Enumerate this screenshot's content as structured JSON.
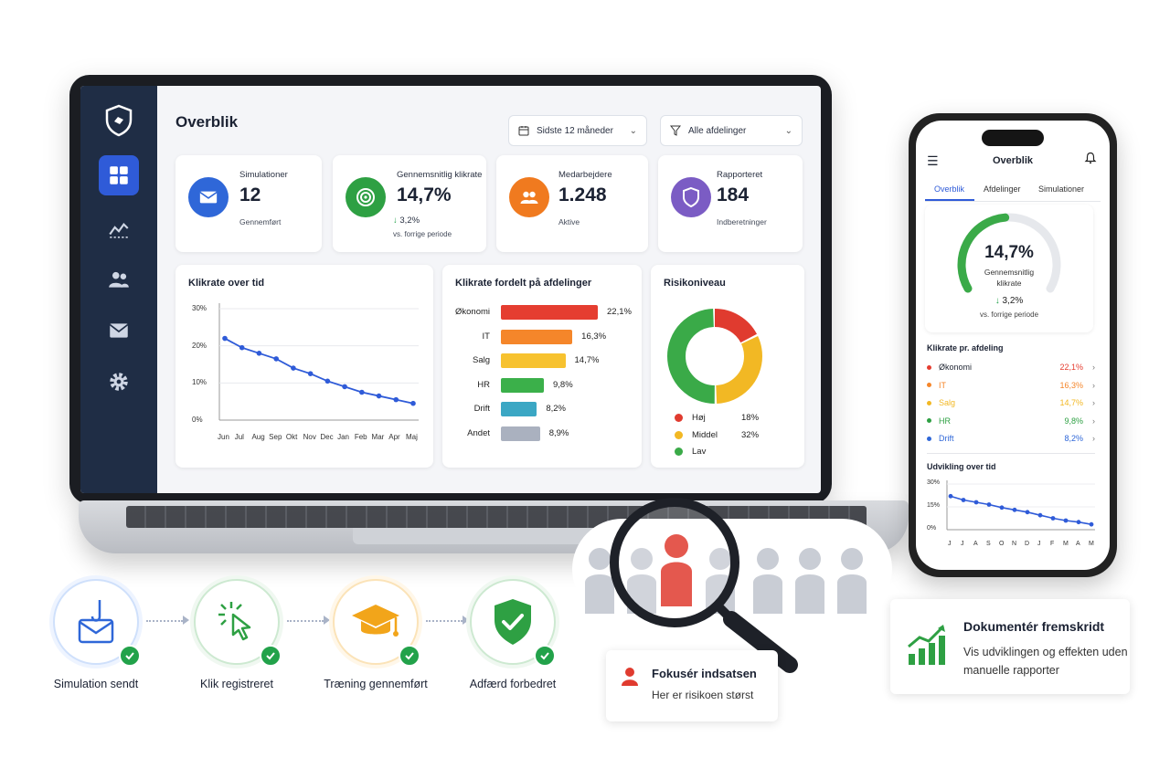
{
  "dashboard": {
    "title": "Overblik",
    "filter_period": "Sidste 12 måneder",
    "filter_dept": "Alle afdelinger",
    "kpis": [
      {
        "label": "Simulationer",
        "value": "12",
        "sub": "Gennemført",
        "color": "#2f67d8",
        "icon": "mail-icon"
      },
      {
        "label": "Gennemsnitlig klikrate",
        "value": "14,7%",
        "delta": "3,2%",
        "sub": "vs. forrige periode",
        "color": "#2ea043",
        "icon": "target-icon"
      },
      {
        "label": "Medarbejdere",
        "value": "1.248",
        "sub": "Aktive",
        "color": "#f07a1f",
        "icon": "users-icon"
      },
      {
        "label": "Rapporteret",
        "value": "184",
        "sub": "Indberetninger",
        "color": "#7b5cc4",
        "icon": "shield-icon"
      }
    ],
    "line_panel_title": "Klikrate over tid",
    "bar_panel_title": "Klikrate fordelt på afdelinger",
    "risk_panel_title": "Risikoniveau",
    "risk_legend": [
      {
        "label": "Høj",
        "value": "18%",
        "color": "#e03b2f"
      },
      {
        "label": "Middel",
        "value": "32%",
        "color": "#f2b824"
      },
      {
        "label": "Lav",
        "value": "",
        "color": "#3aaa48"
      }
    ],
    "sidebar_icons": [
      "dashboard-icon",
      "analytics-icon",
      "users-icon",
      "mail-icon",
      "gear-icon"
    ]
  },
  "chart_data": [
    {
      "type": "line",
      "title": "Klikrate over tid",
      "categories": [
        "Jun",
        "Jul",
        "Aug",
        "Sep",
        "Okt",
        "Nov",
        "Dec",
        "Jan",
        "Feb",
        "Mar",
        "Apr",
        "Maj"
      ],
      "y_ticks": [
        "30%",
        "20%",
        "10%",
        "0%"
      ],
      "ylim": [
        0,
        30
      ],
      "values": [
        22,
        19.5,
        18,
        16.5,
        14,
        12.5,
        10.5,
        9,
        7.5,
        6.5,
        5.5,
        4.5
      ],
      "color": "#2f5bd8"
    },
    {
      "type": "bar",
      "title": "Klikrate fordelt på afdelinger",
      "categories": [
        "Økonomi",
        "IT",
        "Salg",
        "HR",
        "Drift",
        "Andet"
      ],
      "values": [
        22.1,
        16.3,
        14.7,
        9.8,
        8.2,
        8.9
      ],
      "labels": [
        "22,1%",
        "16,3%",
        "14,7%",
        "9,8%",
        "8,2%",
        "8,9%"
      ],
      "colors": [
        "#e53d30",
        "#f5862a",
        "#f7c22f",
        "#3bb04a",
        "#3ba7c4",
        "#aab1bf"
      ]
    },
    {
      "type": "pie",
      "title": "Risikoniveau",
      "categories": [
        "Høj",
        "Middel",
        "Lav"
      ],
      "values": [
        18,
        32,
        50
      ],
      "colors": [
        "#e03b2f",
        "#f2b824",
        "#3aaa48"
      ]
    },
    {
      "type": "line",
      "title": "Udvikling over tid",
      "categories": [
        "J",
        "J",
        "A",
        "S",
        "O",
        "N",
        "D",
        "J",
        "F",
        "M",
        "A",
        "M"
      ],
      "y_ticks": [
        "30%",
        "15%",
        "0%"
      ],
      "ylim": [
        0,
        30
      ],
      "values": [
        22,
        19.5,
        18,
        16.5,
        14.5,
        13,
        11.5,
        9.5,
        7.5,
        6,
        5,
        3.5
      ],
      "color": "#2f5bd8"
    }
  ],
  "phone": {
    "title": "Overblik",
    "tabs": [
      "Overblik",
      "Afdelinger",
      "Simulationer"
    ],
    "gauge_value": "14,7%",
    "gauge_fraction": 0.48,
    "gauge_label_1": "Gennemsnitlig",
    "gauge_label_2": "klikrate",
    "gauge_delta": "3,2%",
    "gauge_sub": "vs. forrige periode",
    "dept_title": "Klikrate pr. afdeling",
    "depts": [
      {
        "name": "Økonomi",
        "value": "22,1%",
        "color": "#e53d30"
      },
      {
        "name": "IT",
        "value": "16,3%",
        "color": "#f5862a"
      },
      {
        "name": "Salg",
        "value": "14,7%",
        "color": "#f2b824"
      },
      {
        "name": "HR",
        "value": "9,8%",
        "color": "#2ea043"
      },
      {
        "name": "Drift",
        "value": "8,2%",
        "color": "#2f67d8"
      }
    ],
    "trend_title": "Udvikling over tid"
  },
  "flow": {
    "steps": [
      {
        "label": "Simulation sendt",
        "icon": "phishing-mail-icon",
        "color": "#2f67d8"
      },
      {
        "label": "Klik registreret",
        "icon": "cursor-click-icon",
        "color": "#2ea043"
      },
      {
        "label": "Træning gennemført",
        "icon": "graduation-cap-icon",
        "color": "#f2a51a"
      },
      {
        "label": "Adfærd forbedret",
        "icon": "shield-check-icon",
        "color": "#2ea043"
      }
    ]
  },
  "focus_card": {
    "title": "Fokusér indsatsen",
    "sub": "Her er risikoen størst"
  },
  "doc_card": {
    "title": "Dokumentér fremskridt",
    "sub": "Vis udviklingen og effekten uden manuelle rapporter"
  }
}
